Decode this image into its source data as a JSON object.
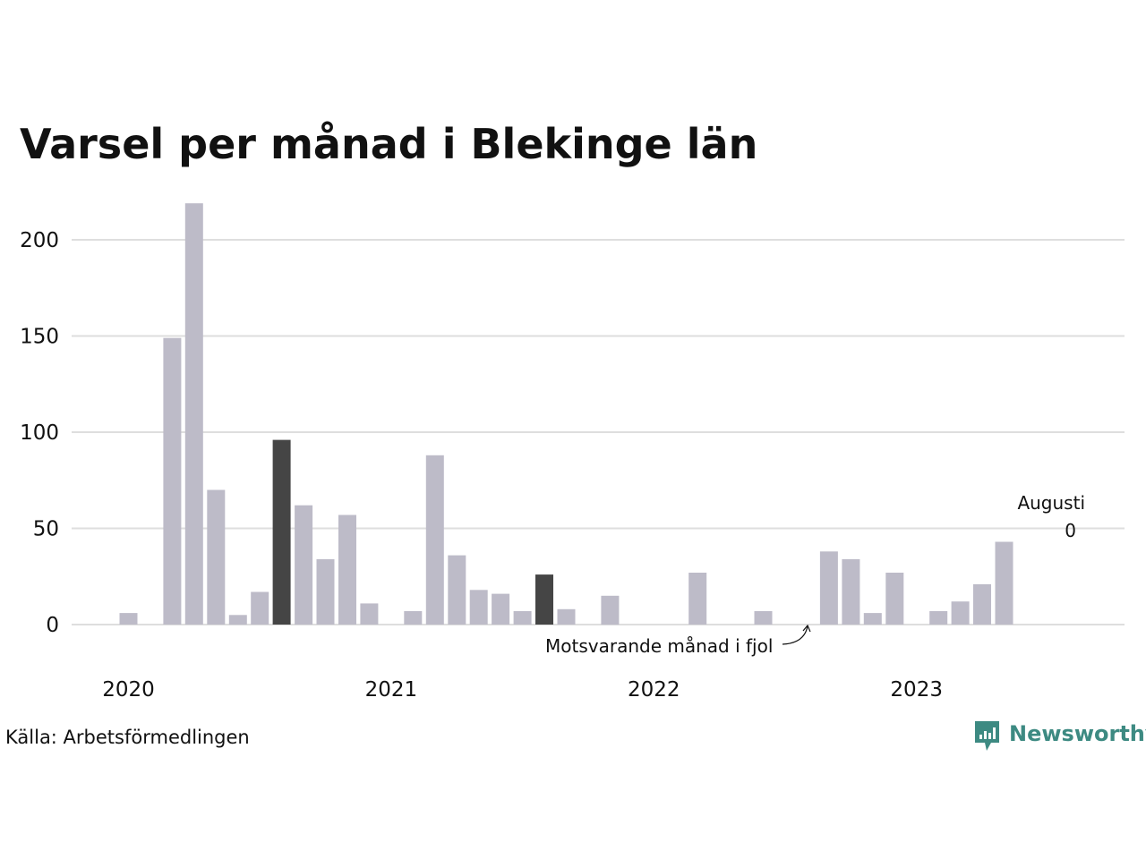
{
  "title": "Varsel per månad i Blekinge län",
  "source": "Källa: Arbetsförmedlingen",
  "logo": {
    "text": "Newsworthy",
    "icon": "newsworthy-chart-icon",
    "color": "#3d8a82"
  },
  "annotation_last": {
    "line1": "Augusti",
    "line2": "0"
  },
  "annotation_prev_year": "Motsvarande månad i fjol",
  "colors": {
    "bar": "#bdbbc8",
    "highlight": "#454545",
    "grid": "#dedede"
  },
  "chart_data": {
    "type": "bar",
    "title": "Varsel per månad i Blekinge län",
    "xlabel": "",
    "ylabel": "",
    "ylim": [
      0,
      220
    ],
    "y_ticks": [
      0,
      50,
      100,
      150,
      200
    ],
    "x_tick_labels": [
      "2020",
      "2021",
      "2022",
      "2023"
    ],
    "grid": true,
    "x": [
      "2020-01",
      "2020-02",
      "2020-03",
      "2020-04",
      "2020-05",
      "2020-06",
      "2020-07",
      "2020-08",
      "2020-09",
      "2020-10",
      "2020-11",
      "2020-12",
      "2021-01",
      "2021-02",
      "2021-03",
      "2021-04",
      "2021-05",
      "2021-06",
      "2021-07",
      "2021-08",
      "2021-09",
      "2021-10",
      "2021-11",
      "2021-12",
      "2022-01",
      "2022-02",
      "2022-03",
      "2022-04",
      "2022-05",
      "2022-06",
      "2022-07",
      "2022-08",
      "2022-09",
      "2022-10",
      "2022-11",
      "2022-12",
      "2023-01",
      "2023-02",
      "2023-03",
      "2023-04",
      "2023-05",
      "2023-06",
      "2023-07",
      "2023-08"
    ],
    "values": [
      6,
      0,
      149,
      219,
      70,
      5,
      17,
      96,
      62,
      34,
      57,
      11,
      0,
      7,
      88,
      36,
      18,
      16,
      7,
      26,
      8,
      0,
      15,
      0,
      0,
      0,
      27,
      0,
      0,
      7,
      0,
      0,
      38,
      34,
      6,
      27,
      0,
      7,
      12,
      21,
      43,
      0,
      0,
      0
    ],
    "highlight": [
      "2020-08",
      "2021-08"
    ]
  }
}
